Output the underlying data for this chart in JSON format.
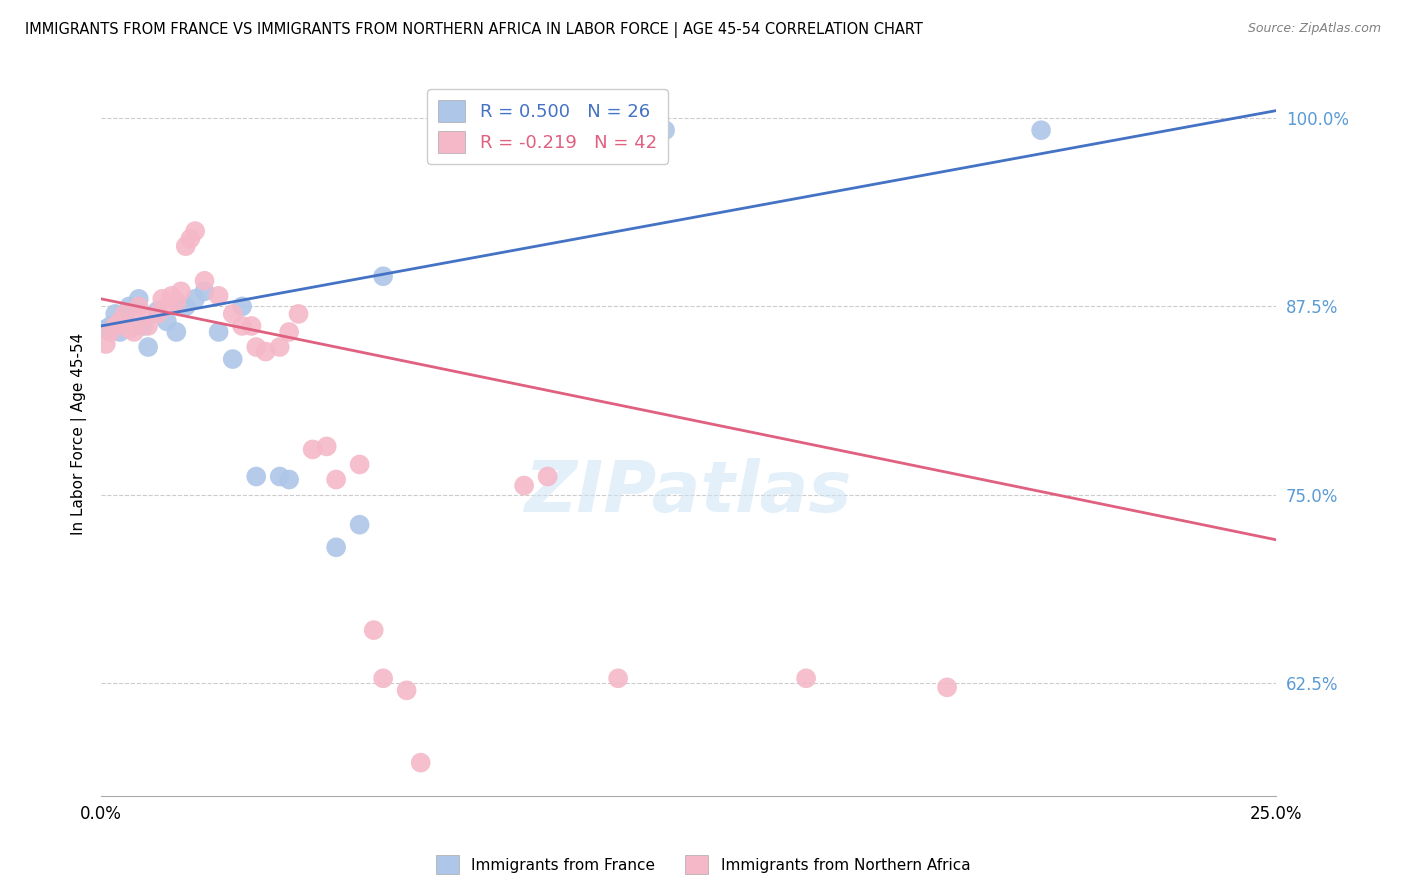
{
  "title": "IMMIGRANTS FROM FRANCE VS IMMIGRANTS FROM NORTHERN AFRICA IN LABOR FORCE | AGE 45-54 CORRELATION CHART",
  "source": "Source: ZipAtlas.com",
  "xlabel": "",
  "ylabel": "In Labor Force | Age 45-54",
  "xlim": [
    0.0,
    0.25
  ],
  "ylim": [
    0.55,
    1.03
  ],
  "yticks": [
    0.625,
    0.75,
    0.875,
    1.0
  ],
  "ytick_labels": [
    "62.5%",
    "75.0%",
    "87.5%",
    "100.0%"
  ],
  "xticks": [
    0.0,
    0.05,
    0.1,
    0.15,
    0.2,
    0.25
  ],
  "xtick_labels": [
    "0.0%",
    "",
    "",
    "",
    "",
    "25.0%"
  ],
  "france_R": 0.5,
  "france_N": 26,
  "africa_R": -0.219,
  "africa_N": 42,
  "france_color": "#aec6e8",
  "africa_color": "#f4b8c8",
  "france_line_color": "#4472c4",
  "africa_line_color": "#e06080",
  "watermark": "ZIPatlas",
  "france_line": [
    0.0,
    0.862,
    0.25,
    1.005
  ],
  "africa_line": [
    0.0,
    0.88,
    0.25,
    0.72
  ],
  "france_points": [
    [
      0.001,
      0.86
    ],
    [
      0.002,
      0.862
    ],
    [
      0.003,
      0.87
    ],
    [
      0.004,
      0.858
    ],
    [
      0.005,
      0.868
    ],
    [
      0.006,
      0.875
    ],
    [
      0.008,
      0.88
    ],
    [
      0.009,
      0.862
    ],
    [
      0.01,
      0.848
    ],
    [
      0.012,
      0.872
    ],
    [
      0.014,
      0.865
    ],
    [
      0.016,
      0.858
    ],
    [
      0.018,
      0.875
    ],
    [
      0.02,
      0.88
    ],
    [
      0.022,
      0.885
    ],
    [
      0.025,
      0.858
    ],
    [
      0.028,
      0.84
    ],
    [
      0.03,
      0.875
    ],
    [
      0.033,
      0.762
    ],
    [
      0.038,
      0.762
    ],
    [
      0.04,
      0.76
    ],
    [
      0.05,
      0.715
    ],
    [
      0.055,
      0.73
    ],
    [
      0.06,
      0.895
    ],
    [
      0.12,
      0.992
    ],
    [
      0.2,
      0.992
    ]
  ],
  "africa_points": [
    [
      0.001,
      0.85
    ],
    [
      0.002,
      0.858
    ],
    [
      0.003,
      0.862
    ],
    [
      0.004,
      0.865
    ],
    [
      0.005,
      0.87
    ],
    [
      0.006,
      0.86
    ],
    [
      0.007,
      0.858
    ],
    [
      0.008,
      0.875
    ],
    [
      0.009,
      0.868
    ],
    [
      0.01,
      0.862
    ],
    [
      0.012,
      0.87
    ],
    [
      0.013,
      0.88
    ],
    [
      0.014,
      0.875
    ],
    [
      0.015,
      0.882
    ],
    [
      0.016,
      0.878
    ],
    [
      0.017,
      0.885
    ],
    [
      0.018,
      0.915
    ],
    [
      0.019,
      0.92
    ],
    [
      0.02,
      0.925
    ],
    [
      0.022,
      0.892
    ],
    [
      0.025,
      0.882
    ],
    [
      0.028,
      0.87
    ],
    [
      0.03,
      0.862
    ],
    [
      0.032,
      0.862
    ],
    [
      0.033,
      0.848
    ],
    [
      0.035,
      0.845
    ],
    [
      0.038,
      0.848
    ],
    [
      0.04,
      0.858
    ],
    [
      0.042,
      0.87
    ],
    [
      0.045,
      0.78
    ],
    [
      0.048,
      0.782
    ],
    [
      0.05,
      0.76
    ],
    [
      0.055,
      0.77
    ],
    [
      0.058,
      0.66
    ],
    [
      0.06,
      0.628
    ],
    [
      0.065,
      0.62
    ],
    [
      0.068,
      0.572
    ],
    [
      0.09,
      0.756
    ],
    [
      0.095,
      0.762
    ],
    [
      0.11,
      0.628
    ],
    [
      0.15,
      0.628
    ],
    [
      0.18,
      0.622
    ]
  ]
}
